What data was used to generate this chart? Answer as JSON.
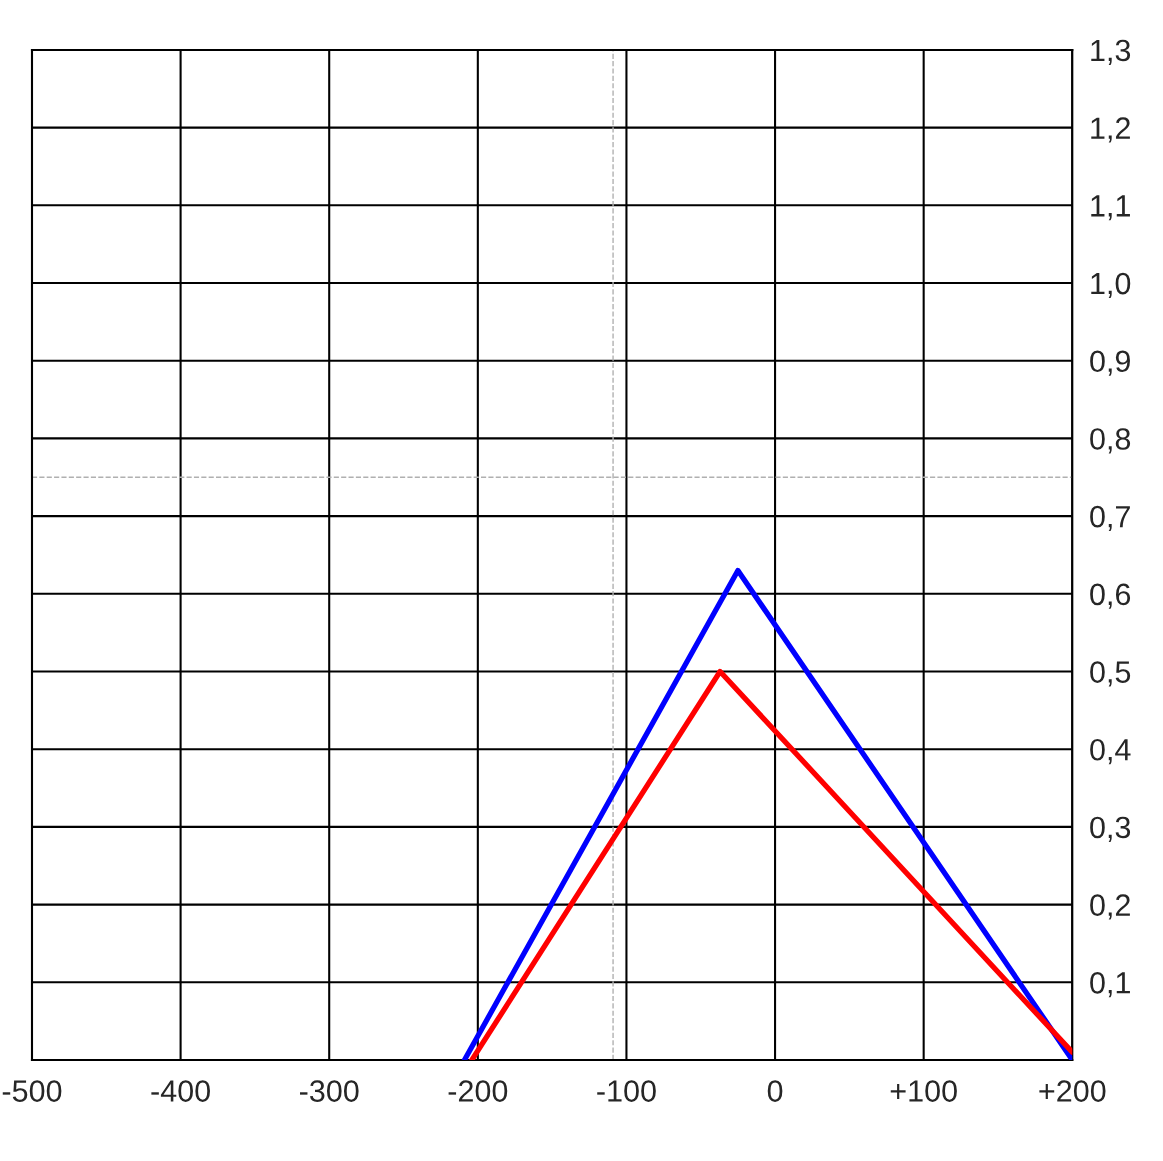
{
  "chart_data": {
    "type": "line",
    "series": [
      {
        "color": "#0000ff",
        "x": [
          -209,
          -25,
          200
        ],
        "values": [
          0,
          0.63,
          0
        ]
      },
      {
        "color": "#ff0000",
        "x": [
          -204,
          -37,
          200
        ],
        "values": [
          0,
          0.5,
          0.01
        ]
      }
    ],
    "xlim": [
      -500,
      200
    ],
    "ylim": [
      0,
      1.3
    ],
    "xticks": [
      -500,
      -400,
      -300,
      -200,
      -100,
      0,
      {
        "value": 100,
        "label": "+100"
      },
      {
        "value": 200,
        "label": "+200"
      }
    ],
    "yticks": [
      {
        "value": 0.1,
        "label": "0,1"
      },
      {
        "value": 0.2,
        "label": "0,2"
      },
      {
        "value": 0.3,
        "label": "0,3"
      },
      {
        "value": 0.4,
        "label": "0,4"
      },
      {
        "value": 0.5,
        "label": "0,5"
      },
      {
        "value": 0.6,
        "label": "0,6"
      },
      {
        "value": 0.7,
        "label": "0,7"
      },
      {
        "value": 0.8,
        "label": "0,8"
      },
      {
        "value": 0.9,
        "label": "0,9"
      },
      {
        "value": 1.0,
        "label": "1,0"
      },
      {
        "value": 1.1,
        "label": "1,1"
      },
      {
        "value": 1.2,
        "label": "1,2"
      },
      {
        "value": 1.3,
        "label": "1,3"
      }
    ],
    "grid": true,
    "marker": "none",
    "line_style": "solid",
    "ref_lines": [
      {
        "axis": "x",
        "value": -109,
        "color": "#b0b0b0",
        "line_style": "dashed"
      },
      {
        "axis": "y",
        "value": 0.75,
        "color": "#b0b0b0",
        "line_style": "dashed"
      }
    ]
  }
}
